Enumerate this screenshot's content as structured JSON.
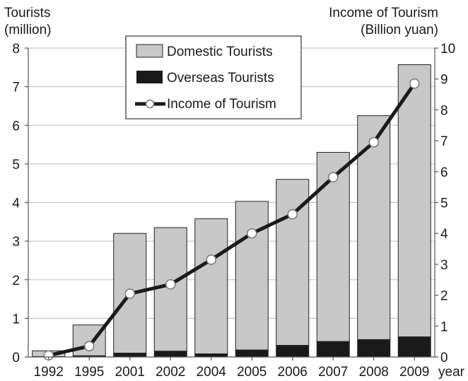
{
  "chart_data": {
    "type": "bar",
    "categories": [
      "1992",
      "1995",
      "2001",
      "2002",
      "2004",
      "2005",
      "2006",
      "2007",
      "2008",
      "2009"
    ],
    "xlabel": "year",
    "y_left": {
      "label_line1": "Tourists",
      "label_line2": "(million)",
      "range": [
        0,
        8
      ],
      "ticks": [
        "0",
        "1",
        "2",
        "3",
        "4",
        "5",
        "6",
        "7",
        "8"
      ]
    },
    "y_right": {
      "label_line1": "Income of Tourism",
      "label_line2": "(Billion yuan)",
      "range": [
        0,
        10
      ],
      "ticks": [
        "0",
        "1",
        "2",
        "3",
        "4",
        "5",
        "6",
        "7",
        "8",
        "9",
        "10"
      ]
    },
    "grid": true,
    "legend_position": "top-center",
    "series": [
      {
        "name": "Domestic Tourists",
        "kind": "stacked-bar",
        "axis": "left",
        "color": "#c8c8c8",
        "values": [
          0.15,
          0.8,
          3.1,
          3.2,
          3.5,
          3.85,
          4.3,
          4.9,
          5.8,
          7.05
        ]
      },
      {
        "name": "Overseas Tourists",
        "kind": "stacked-bar",
        "axis": "left",
        "color": "#1a1a1a",
        "values": [
          0.01,
          0.03,
          0.1,
          0.15,
          0.08,
          0.18,
          0.3,
          0.4,
          0.45,
          0.52
        ]
      },
      {
        "name": "Income of Tourism",
        "kind": "line",
        "axis": "right",
        "color": "#1a1a1a",
        "values": [
          0.05,
          0.35,
          2.05,
          2.35,
          3.15,
          4.0,
          4.62,
          5.82,
          6.95,
          8.85
        ]
      }
    ]
  }
}
